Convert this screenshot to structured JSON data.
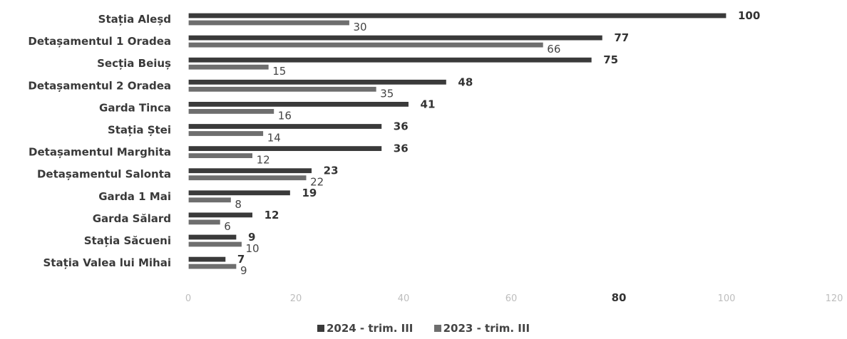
{
  "chart_data": {
    "type": "bar",
    "orientation": "horizontal",
    "categories": [
      "Stația Aleșd",
      "Detașamentul 1 Oradea",
      "Secția Beiuș",
      "Detașamentul 2 Oradea",
      "Garda Tinca",
      "Stația Ștei",
      "Detașamentul Marghita",
      "Detașamentul Salonta",
      "Garda 1 Mai",
      "Garda Sălard",
      "Stația Săcueni",
      "Stația Valea lui Mihai"
    ],
    "series": [
      {
        "name": "2024 - trim. III",
        "values": [
          100,
          77,
          75,
          48,
          41,
          36,
          36,
          23,
          19,
          12,
          9,
          7
        ]
      },
      {
        "name": "2023 - trim. III",
        "values": [
          30,
          66,
          15,
          35,
          16,
          14,
          12,
          22,
          8,
          6,
          10,
          9
        ]
      }
    ],
    "xlim": [
      0,
      120
    ],
    "xticks": [
      "0",
      "20",
      "40",
      "60",
      "80",
      "100",
      "120"
    ],
    "grid": false,
    "legend_position": "bottom",
    "colors": {
      "2024": "#3a3a3a",
      "2023": "#6e6e6e",
      "outline": "#ffffff"
    }
  }
}
